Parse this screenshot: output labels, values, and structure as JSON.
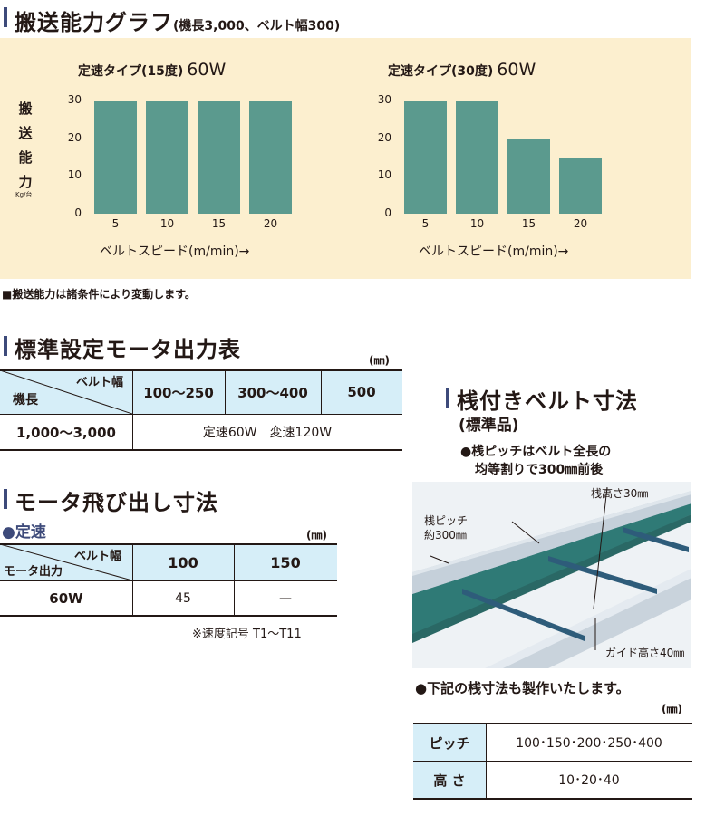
{
  "header": {
    "title": "搬送能力グラフ",
    "subtitle": "(機長3,000、ベルト幅300)"
  },
  "chart_data": [
    {
      "type": "bar",
      "title": "定速タイプ(15度)",
      "title_suffix": "60W",
      "categories": [
        "5",
        "10",
        "15",
        "20"
      ],
      "values": [
        30,
        30,
        30,
        30
      ],
      "yticks": [
        "0",
        "10",
        "20",
        "30"
      ],
      "ylim": [
        0,
        30
      ],
      "xlabel": "ベルトスピード(m/min)→",
      "ylabel_chars": [
        "搬",
        "送",
        "能",
        "力"
      ],
      "ylabel_unit": "Kg/台",
      "grid": false,
      "color": "#5b9a8e"
    },
    {
      "type": "bar",
      "title": "定速タイプ(30度)",
      "title_suffix": "60W",
      "categories": [
        "5",
        "10",
        "15",
        "20"
      ],
      "values": [
        30,
        30,
        20,
        15
      ],
      "yticks": [
        "0",
        "10",
        "20",
        "30"
      ],
      "ylim": [
        0,
        30
      ],
      "xlabel": "ベルトスピード(m/min)→",
      "grid": false,
      "color": "#5b9a8e"
    }
  ],
  "chart_note": "■搬送能力は諸条件により変動します。",
  "motor_output": {
    "title": "標準設定モータ出力表",
    "unit": "(㎜)",
    "corner_top": "ベルト幅",
    "corner_bottom": "機長",
    "columns": [
      "100〜250",
      "300〜400",
      "500"
    ],
    "row_label": "1,000〜3,000",
    "row_value": "定速60W　変速120W"
  },
  "motor_projection": {
    "title": "モータ飛び出し寸法",
    "subheading": "●定速",
    "unit": "(㎜)",
    "corner_top": "ベルト幅",
    "corner_bottom": "モータ出力",
    "columns": [
      "100",
      "150"
    ],
    "row_label": "60W",
    "row_values": [
      "45",
      "—"
    ],
    "footnote": "※速度記号 T1〜T11"
  },
  "cleat_belt": {
    "title": "桟付きベルト寸法",
    "subtitle": "(標準品)",
    "bullet_line1": "●桟ピッチはベルト全長の",
    "bullet_line2": "均等割りで300㎜前後",
    "label_height": "桟高さ30㎜",
    "label_pitch_1": "桟ピッチ",
    "label_pitch_2": "約300㎜",
    "label_guide": "ガイド高さ40㎜",
    "colors": {
      "belt": "#2f7a76",
      "frame": "#c9d3dc",
      "bg": "#e9eef2"
    }
  },
  "cleat_options": {
    "heading": "●下記の桟寸法も製作いたします。",
    "unit": "(㎜)",
    "rows": [
      {
        "label": "ピッチ",
        "value": "100･150･200･250･400"
      },
      {
        "label": "高 さ",
        "value": "10･20･40"
      }
    ]
  }
}
